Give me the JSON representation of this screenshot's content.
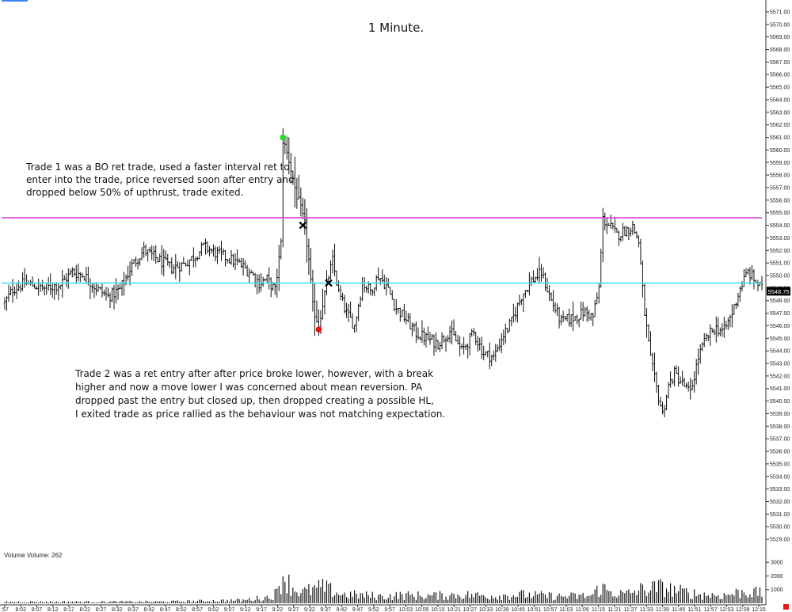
{
  "title": "1 Minute.",
  "annotations": {
    "trade1": [
      "Trade 1 was a BO ret trade, used a faster interval ret to",
      "enter into the trade, price reversed soon after entry and",
      "dropped below 50% of upthrust, trade exited."
    ],
    "trade2": [
      "Trade 2 was a ret entry after after price broke lower, however, with a break",
      "higher and now a move lower I was concerned about mean reversion.  PA",
      "dropped past the entry but closed up, then dropped creating a possible HL,",
      "I exited trade as price rallied as the behaviour was not matching expectation."
    ]
  },
  "volume_label": "Volume  Volume: 262",
  "current_price_label": "5548.75",
  "colors": {
    "price_bars": "#111111",
    "magenta_line": "#d63fd6",
    "cyan_line": "#3fe0ee",
    "entry_marker": "#22dd22",
    "exit_marker": "#ee1111",
    "x_marker": "#000000",
    "volume_bars": "#111111",
    "price_tag_bg": "#000000",
    "price_tag_text": "#ffffff"
  },
  "chart_data": {
    "type": "ohlc",
    "price_axis": {
      "ylim": [
        5528.5,
        5571.5
      ],
      "ticks": [
        "5571.00",
        "5570.00",
        "5569.00",
        "5568.00",
        "5567.00",
        "5566.00",
        "5565.00",
        "5564.00",
        "5563.00",
        "5562.00",
        "5561.00",
        "5560.00",
        "5559.00",
        "5558.00",
        "5557.00",
        "5556.00",
        "5555.00",
        "5554.00",
        "5553.00",
        "5552.00",
        "5551.00",
        "5550.00",
        "5549.00",
        "5548.00",
        "5547.00",
        "5546.00",
        "5545.00",
        "5544.00",
        "5543.00",
        "5542.00",
        "5541.00",
        "5540.00",
        "5539.00",
        "5538.00",
        "5537.00",
        "5536.00",
        "5535.00",
        "5534.00",
        "5533.00",
        "5532.00",
        "5531.00",
        "5530.00",
        "5529.00"
      ]
    },
    "time_axis": {
      "ticks": [
        ":57",
        "8:02",
        "8:07",
        "8:12",
        "8:17",
        "8:22",
        "8:27",
        "8:32",
        "8:37",
        "8:42",
        "8:47",
        "8:52",
        "8:57",
        "9:02",
        "9:07",
        "9:12",
        "9:17",
        "9:22",
        "9:27",
        "9:32",
        "9:37",
        "9:42",
        "9:47",
        "9:52",
        "9:57",
        "10:03",
        "10:09",
        "10:15",
        "10:21",
        "10:27",
        "10:33",
        "10:39",
        "10:45",
        "10:51",
        "10:57",
        "11:03",
        "11:09",
        "11:15",
        "11:21",
        "11:27",
        "11:33",
        "11:39",
        "11:45",
        "11:51",
        "11:57",
        "12:03",
        "12:09",
        "12:15"
      ]
    },
    "volume_axis": {
      "ylim": [
        0,
        3300
      ],
      "ticks": [
        "3000",
        "2000",
        "1000"
      ]
    },
    "price_path": [
      [
        0,
        5547.8
      ],
      [
        4,
        5548.9
      ],
      [
        10,
        5549.4
      ],
      [
        20,
        5549.0
      ],
      [
        28,
        5549.3
      ],
      [
        34,
        5550.3
      ],
      [
        40,
        5550.0
      ],
      [
        46,
        5549.0
      ],
      [
        52,
        5548.3
      ],
      [
        58,
        5548.9
      ],
      [
        64,
        5550.8
      ],
      [
        70,
        5552.0
      ],
      [
        78,
        5551.2
      ],
      [
        84,
        5550.6
      ],
      [
        90,
        5550.9
      ],
      [
        96,
        5551.6
      ],
      [
        100,
        5552.3
      ],
      [
        106,
        5551.8
      ],
      [
        112,
        5551.4
      ],
      [
        118,
        5550.9
      ],
      [
        124,
        5550.2
      ],
      [
        128,
        5549.4
      ],
      [
        132,
        5549.7
      ],
      [
        136,
        5548.8
      ],
      [
        139,
        5552.5
      ],
      [
        140,
        5560.8
      ],
      [
        143,
        5559.2
      ],
      [
        146,
        5557.0
      ],
      [
        149,
        5555.2
      ],
      [
        151,
        5554.0
      ],
      [
        153,
        5551.2
      ],
      [
        155,
        5547.5
      ],
      [
        158,
        5546.1
      ],
      [
        160,
        5547.8
      ],
      [
        162,
        5549.3
      ],
      [
        165,
        5551.2
      ],
      [
        168,
        5548.6
      ],
      [
        172,
        5547.0
      ],
      [
        176,
        5546.0
      ],
      [
        180,
        5549.4
      ],
      [
        184,
        5548.8
      ],
      [
        188,
        5550.0
      ],
      [
        192,
        5549.2
      ],
      [
        197,
        5547.4
      ],
      [
        202,
        5546.5
      ],
      [
        207,
        5545.4
      ],
      [
        212,
        5545.0
      ],
      [
        218,
        5544.6
      ],
      [
        224,
        5545.6
      ],
      [
        230,
        5544.0
      ],
      [
        236,
        5545.4
      ],
      [
        241,
        5543.8
      ],
      [
        246,
        5543.5
      ],
      [
        250,
        5545.0
      ],
      [
        255,
        5546.3
      ],
      [
        260,
        5548.4
      ],
      [
        265,
        5549.6
      ],
      [
        270,
        5550.2
      ],
      [
        275,
        5548.0
      ],
      [
        280,
        5546.3
      ],
      [
        287,
        5546.7
      ],
      [
        292,
        5547.1
      ],
      [
        296,
        5546.7
      ],
      [
        299,
        5549.0
      ],
      [
        301,
        5554.5
      ],
      [
        304,
        5554.0
      ],
      [
        308,
        5553.2
      ],
      [
        312,
        5553.6
      ],
      [
        316,
        5553.9
      ],
      [
        319,
        5552.7
      ],
      [
        322,
        5547.0
      ],
      [
        325,
        5543.3
      ],
      [
        328,
        5541.0
      ],
      [
        331,
        5539.0
      ],
      [
        334,
        5541.2
      ],
      [
        337,
        5542.2
      ],
      [
        341,
        5541.4
      ],
      [
        345,
        5540.6
      ],
      [
        349,
        5543.5
      ],
      [
        353,
        5545.0
      ],
      [
        357,
        5545.8
      ],
      [
        362,
        5545.6
      ],
      [
        366,
        5547.0
      ],
      [
        370,
        5549.0
      ],
      [
        374,
        5550.3
      ],
      [
        378,
        5549.5
      ],
      [
        381,
        5548.9
      ]
    ],
    "volume_path": [
      [
        0,
        120
      ],
      [
        80,
        130
      ],
      [
        120,
        250
      ],
      [
        133,
        500
      ],
      [
        137,
        850
      ],
      [
        140,
        2400
      ],
      [
        143,
        1600
      ],
      [
        146,
        1100
      ],
      [
        150,
        900
      ],
      [
        155,
        1100
      ],
      [
        160,
        1300
      ],
      [
        165,
        1000
      ],
      [
        170,
        700
      ],
      [
        180,
        650
      ],
      [
        190,
        550
      ],
      [
        200,
        650
      ],
      [
        215,
        600
      ],
      [
        230,
        700
      ],
      [
        245,
        600
      ],
      [
        260,
        700
      ],
      [
        280,
        550
      ],
      [
        295,
        600
      ],
      [
        300,
        1300
      ],
      [
        304,
        950
      ],
      [
        312,
        700
      ],
      [
        320,
        1100
      ],
      [
        330,
        1300
      ],
      [
        340,
        950
      ],
      [
        350,
        700
      ],
      [
        362,
        650
      ],
      [
        372,
        950
      ],
      [
        381,
        800
      ]
    ],
    "reference_lines": [
      {
        "color_key": "magenta_line",
        "price": 5554.6
      },
      {
        "color_key": "cyan_line",
        "price": 5549.4
      }
    ],
    "markers": [
      {
        "type": "dot",
        "color_key": "entry_marker",
        "bar": 140,
        "price": 5561.0
      },
      {
        "type": "x",
        "color_key": "x_marker",
        "bar": 150,
        "price": 5554.0
      },
      {
        "type": "x",
        "color_key": "x_marker",
        "bar": 163,
        "price": 5549.4
      },
      {
        "type": "dot",
        "color_key": "exit_marker",
        "bar": 158,
        "price": 5545.7
      }
    ],
    "bar_count": 382
  }
}
